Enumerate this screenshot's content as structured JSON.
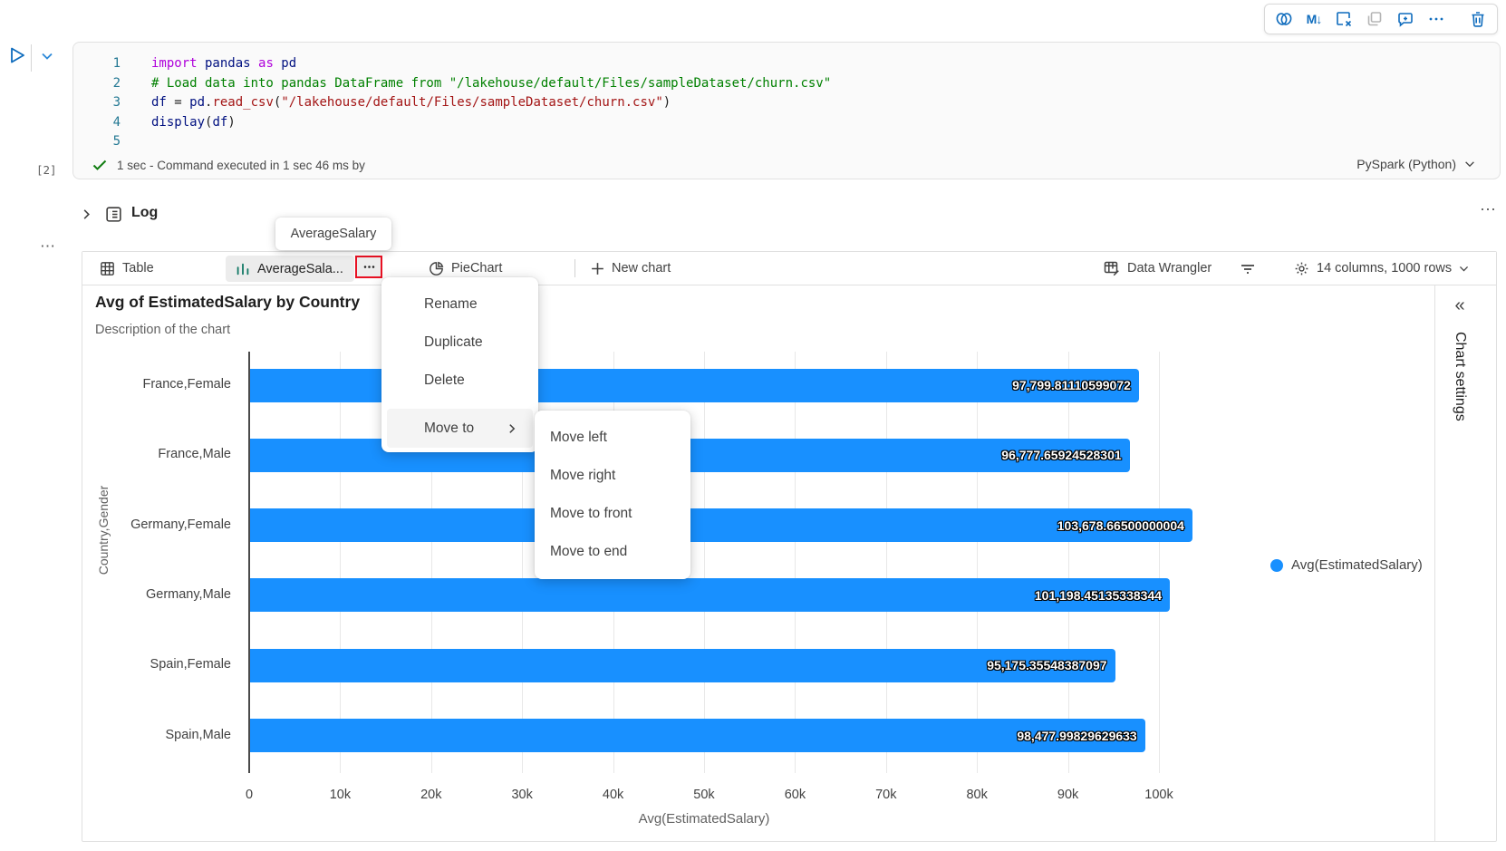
{
  "toolbar": {
    "icons": [
      "copilot-icon",
      "markdown-convert-icon",
      "delete-cell-icon",
      "copy-cell-icon",
      "add-comment-icon",
      "more-options-icon",
      "trash-icon"
    ],
    "markdown_glyph": "M↓"
  },
  "cell": {
    "execution_count": "[2]",
    "status_text": "1 sec - Command executed in 1 sec 46 ms by",
    "kernel_label": "PySpark (Python)",
    "code_colors": {
      "keyword": "#af00db",
      "name": "#001080",
      "comment": "#008000",
      "string": "#a31515",
      "function": "#a31515",
      "plain": "#1f1f1f"
    },
    "lines": [
      {
        "num": "1",
        "tokens": [
          {
            "t": "import",
            "c": "keyword"
          },
          {
            "t": " pandas ",
            "c": "name"
          },
          {
            "t": "as",
            "c": "keyword"
          },
          {
            "t": " pd",
            "c": "name"
          }
        ]
      },
      {
        "num": "2",
        "tokens": [
          {
            "t": "# Load data into pandas DataFrame from \"/lakehouse/default/Files/sampleDataset/churn.csv\"",
            "c": "comment"
          }
        ]
      },
      {
        "num": "3",
        "tokens": [
          {
            "t": "df",
            "c": "name"
          },
          {
            "t": " = ",
            "c": "plain"
          },
          {
            "t": "pd",
            "c": "name"
          },
          {
            "t": ".",
            "c": "plain"
          },
          {
            "t": "read_csv",
            "c": "function"
          },
          {
            "t": "(",
            "c": "plain"
          },
          {
            "t": "\"/lakehouse/default/Files/sampleDataset/churn.csv\"",
            "c": "string"
          },
          {
            "t": ")",
            "c": "plain"
          }
        ]
      },
      {
        "num": "4",
        "tokens": [
          {
            "t": "display",
            "c": "name"
          },
          {
            "t": "(",
            "c": "plain"
          },
          {
            "t": "df",
            "c": "name"
          },
          {
            "t": ")",
            "c": "plain"
          }
        ]
      },
      {
        "num": "5",
        "tokens": []
      }
    ]
  },
  "log": {
    "label": "Log",
    "more_glyph": "⋯"
  },
  "gutter": {
    "more_glyph": "⋯"
  },
  "tooltip": {
    "text": "AverageSalary"
  },
  "tab_bar": {
    "table_label": "Table",
    "average_label": "AverageSala...",
    "more_glyph": "•••",
    "pie_label": "PieChart",
    "new_chart_label": "New chart",
    "data_wrangler_label": "Data Wrangler",
    "summary_label": "14 columns, 1000 rows"
  },
  "context_menu": {
    "items": [
      "Rename",
      "Duplicate",
      "Delete"
    ],
    "move_to_label": "Move to",
    "submenu_items": [
      "Move left",
      "Move right",
      "Move to front",
      "Move to end"
    ]
  },
  "chart": {
    "title": "Avg of EstimatedSalary by Country",
    "subtitle": "Description of the chart",
    "legend_label": "Avg(EstimatedSalary)",
    "settings_panel_title": "Chart settings",
    "collapse_glyph": "«"
  },
  "chart_data": {
    "type": "bar",
    "orientation": "horizontal",
    "title": "Avg of EstimatedSalary by Country",
    "categories": [
      "France,Female",
      "France,Male",
      "Germany,Female",
      "Germany,Male",
      "Spain,Female",
      "Spain,Male"
    ],
    "values": [
      97799.81110599072,
      96777.65924528301,
      103678.66500000004,
      101198.45135338344,
      95175.35548387097,
      98477.99829629633
    ],
    "value_labels": [
      "97,799.81110599072",
      "96,777.65924528301",
      "103,678.66500000004",
      "101,198.45135338344",
      "95,175.35548387097",
      "98,477.99829629633"
    ],
    "xlabel": "Avg(EstimatedSalary)",
    "ylabel": "Country,Gender",
    "xlim": [
      0,
      100000
    ],
    "x_ticks": [
      "0",
      "10k",
      "20k",
      "30k",
      "40k",
      "50k",
      "60k",
      "70k",
      "80k",
      "90k",
      "100k"
    ],
    "grid": true,
    "legend": [
      "Avg(EstimatedSalary)"
    ],
    "legend_position": "right",
    "bar_color": "#1890ff"
  },
  "colors": {
    "accent_blue": "#0f6cbd",
    "bar_blue": "#1890ff",
    "annotation_red": "#e81123",
    "icon_teal": "#117865",
    "check_green": "#107c10"
  }
}
